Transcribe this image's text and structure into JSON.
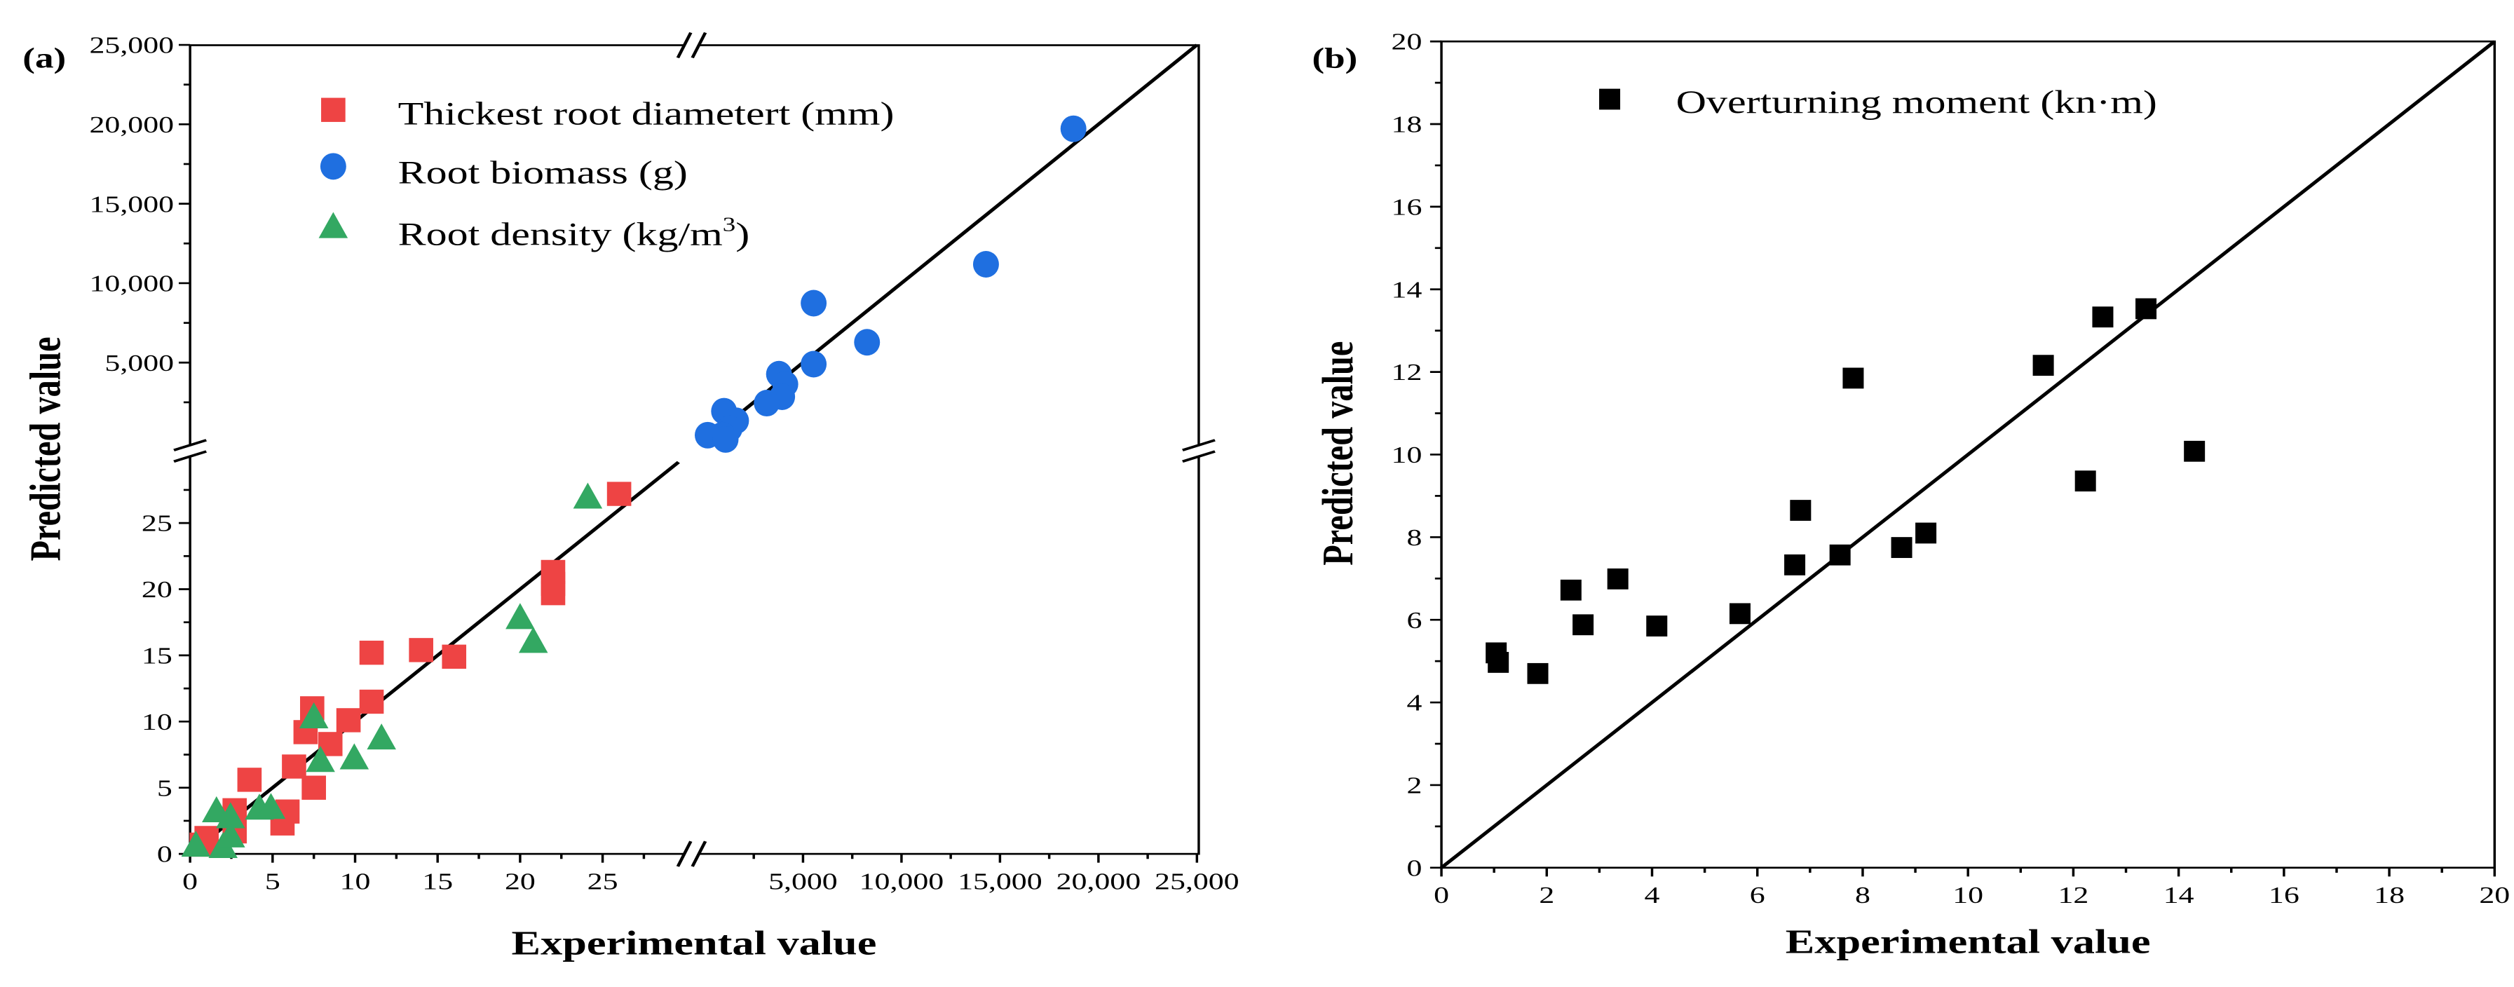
{
  "chart_data": [
    {
      "panel_label": "(a)",
      "type": "scatter",
      "xlabel": "Experimental value",
      "ylabel": "Predicted value",
      "axis_break": true,
      "lower_range": {
        "x": [
          0,
          30
        ],
        "y": [
          0,
          30
        ]
      },
      "upper_range": {
        "x": [
          0,
          25000
        ],
        "y": [
          0,
          25000
        ]
      },
      "lower_x_ticks": [
        "0",
        "5",
        "10",
        "15",
        "20",
        "25"
      ],
      "lower_y_ticks": [
        "0",
        "5",
        "10",
        "15",
        "20",
        "25"
      ],
      "upper_x_ticks": [
        "5,000",
        "10,000",
        "15,000",
        "20,000",
        "25,000"
      ],
      "upper_y_ticks": [
        "5,000",
        "10,000",
        "15,000",
        "20,000",
        "25,000"
      ],
      "reference_line": "y = x",
      "legend_position": "top-left",
      "series": [
        {
          "name": "Thickest root diametert (mm)",
          "marker": "square",
          "color": "#ee4444",
          "section": "lower",
          "points": [
            [
              0.7,
              0.7
            ],
            [
              1.0,
              1.2
            ],
            [
              2.7,
              3.3
            ],
            [
              2.7,
              1.7
            ],
            [
              3.6,
              5.6
            ],
            [
              5.6,
              2.3
            ],
            [
              5.9,
              3.2
            ],
            [
              6.3,
              6.6
            ],
            [
              7.0,
              9.2
            ],
            [
              7.4,
              11.0
            ],
            [
              7.5,
              5.0
            ],
            [
              8.5,
              8.3
            ],
            [
              9.6,
              10.1
            ],
            [
              11.0,
              11.5
            ],
            [
              11.0,
              15.2
            ],
            [
              14.0,
              15.4
            ],
            [
              16.0,
              14.9
            ],
            [
              22.0,
              21.3
            ],
            [
              22.0,
              20.4
            ],
            [
              22.0,
              19.7
            ],
            [
              26.0,
              27.2
            ]
          ]
        },
        {
          "name": "Root biomass (g)",
          "marker": "circle",
          "color": "#1f6fe0",
          "section": "upper",
          "points": [
            [
              18730,
              19720
            ],
            [
              14290,
              11190
            ],
            [
              5540,
              8740
            ],
            [
              8250,
              6280
            ],
            [
              5540,
              4900
            ],
            [
              3780,
              4270
            ],
            [
              4100,
              3640
            ],
            [
              3940,
              2850
            ],
            [
              3160,
              2450
            ],
            [
              990,
              1940
            ],
            [
              1600,
              1340
            ],
            [
              1270,
              830
            ],
            [
              900,
              430
            ],
            [
              160,
              430
            ],
            [
              1070,
              160
            ]
          ]
        },
        {
          "name": "Root density (kg/m",
          "name_sup": "3",
          "name_end": ")",
          "marker": "triangle",
          "color": "#33a862",
          "section": "lower",
          "points": [
            [
              0.35,
              0.7
            ],
            [
              1.6,
              3.3
            ],
            [
              2.0,
              0.6
            ],
            [
              2.45,
              1.4
            ],
            [
              2.45,
              2.85
            ],
            [
              4.2,
              3.5
            ],
            [
              4.9,
              3.55
            ],
            [
              7.5,
              10.4
            ],
            [
              7.9,
              7.1
            ],
            [
              9.95,
              7.3
            ],
            [
              11.6,
              8.8
            ],
            [
              20.0,
              17.9
            ],
            [
              20.8,
              16.1
            ],
            [
              24.1,
              27.0
            ]
          ]
        }
      ]
    },
    {
      "panel_label": "(b)",
      "type": "scatter",
      "xlabel": "Experimental value",
      "ylabel": "Predicted value",
      "xlim": [
        0,
        20
      ],
      "ylim": [
        0,
        20
      ],
      "x_ticks": [
        "0",
        "2",
        "4",
        "6",
        "8",
        "10",
        "12",
        "14",
        "16",
        "18",
        "20"
      ],
      "y_ticks": [
        "0",
        "2",
        "4",
        "6",
        "8",
        "10",
        "12",
        "14",
        "16",
        "18",
        "20"
      ],
      "reference_line": "y = x",
      "legend_position": "top-left",
      "series": [
        {
          "name": "Overturning moment (kn·m)",
          "marker": "square",
          "color": "#000000",
          "points": [
            [
              1.04,
              5.2
            ],
            [
              1.08,
              4.97
            ],
            [
              1.83,
              4.7
            ],
            [
              2.46,
              6.72
            ],
            [
              2.69,
              5.88
            ],
            [
              3.35,
              6.99
            ],
            [
              4.09,
              5.85
            ],
            [
              5.67,
              6.15
            ],
            [
              6.71,
              7.33
            ],
            [
              6.82,
              8.65
            ],
            [
              7.57,
              7.57
            ],
            [
              7.82,
              11.85
            ],
            [
              8.74,
              7.75
            ],
            [
              9.2,
              8.1
            ],
            [
              11.43,
              12.16
            ],
            [
              12.23,
              9.36
            ],
            [
              12.56,
              13.33
            ],
            [
              13.38,
              13.53
            ],
            [
              14.3,
              10.08
            ]
          ]
        }
      ]
    }
  ]
}
